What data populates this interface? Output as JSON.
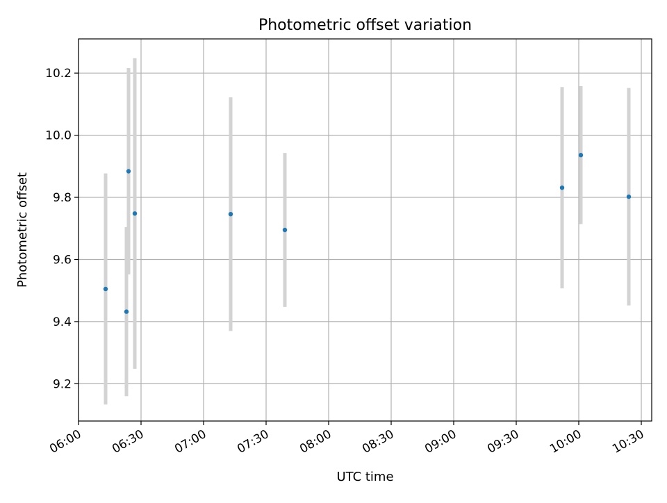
{
  "chart_data": {
    "type": "scatter",
    "title": "Photometric offset variation",
    "xlabel": "UTC time",
    "ylabel": "Photometric offset",
    "x_is_time": true,
    "xlim": [
      "06:00",
      "10:35"
    ],
    "ylim": [
      9.08,
      10.31
    ],
    "x_ticks": [
      "06:00",
      "06:30",
      "07:00",
      "07:30",
      "08:00",
      "08:30",
      "09:00",
      "09:30",
      "10:00",
      "10:30"
    ],
    "y_ticks": [
      "9.2",
      "9.4",
      "9.6",
      "9.8",
      "10.0",
      "10.2"
    ],
    "grid": true,
    "series": [
      {
        "marker_color": "#1f77b4",
        "errorbar_color": "#d3d3d3",
        "points": [
          {
            "x": "06:13",
            "y": 9.505,
            "yerr": 0.372
          },
          {
            "x": "06:23",
            "y": 9.432,
            "yerr": 0.272
          },
          {
            "x": "06:24",
            "y": 9.884,
            "yerr": 0.332
          },
          {
            "x": "06:27",
            "y": 9.748,
            "yerr": 0.5
          },
          {
            "x": "07:13",
            "y": 9.746,
            "yerr": 0.376
          },
          {
            "x": "07:39",
            "y": 9.695,
            "yerr": 0.248
          },
          {
            "x": "09:52",
            "y": 9.831,
            "yerr": 0.324
          },
          {
            "x": "10:01",
            "y": 9.936,
            "yerr": 0.222
          },
          {
            "x": "10:24",
            "y": 9.802,
            "yerr": 0.35
          }
        ]
      }
    ]
  }
}
